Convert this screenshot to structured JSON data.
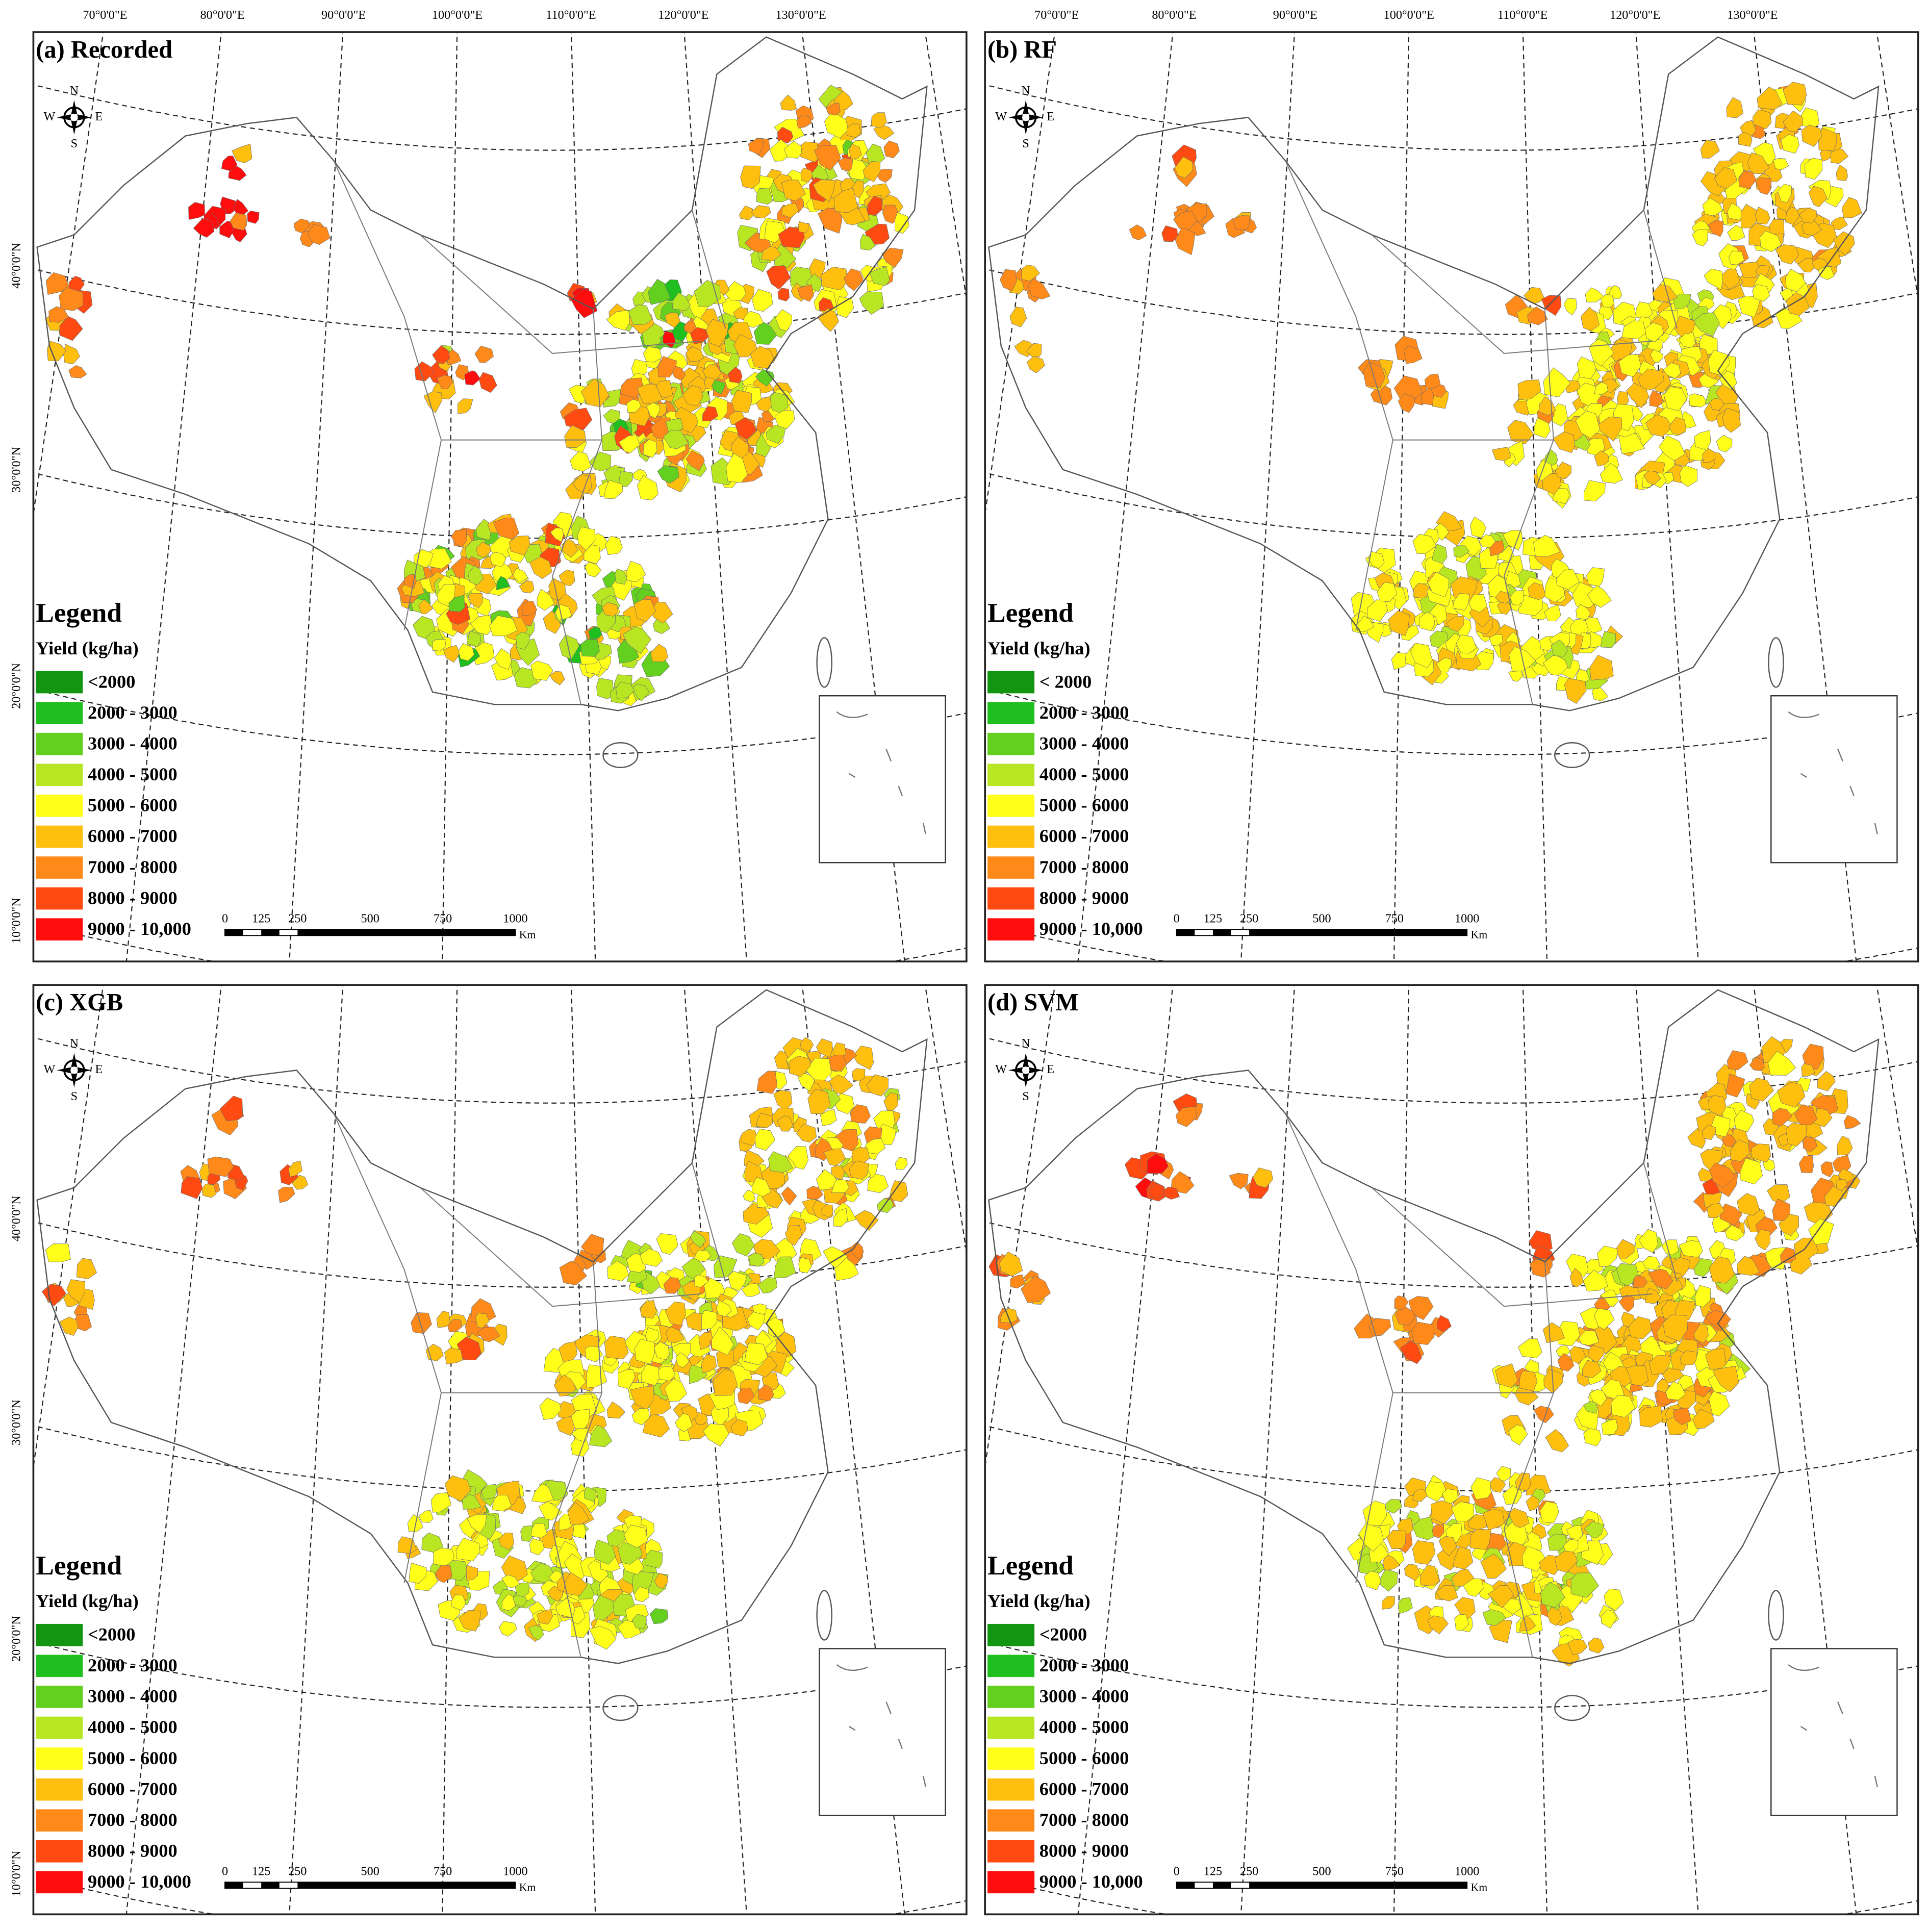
{
  "lon_labels": [
    "70°0'0\"E",
    "80°0'0\"E",
    "90°0'0\"E",
    "100°0'0\"E",
    "110°0'0\"E",
    "120°0'0\"E",
    "130°0'0\"E"
  ],
  "lat_labels": [
    "40°0'0\"N",
    "30°0'0\"N",
    "20°0'0\"N",
    "10°0'0\"N"
  ],
  "compass": {
    "n": "N",
    "s": "S",
    "e": "E",
    "w": "W"
  },
  "panels": [
    {
      "title": "(a) Recorded",
      "legend_title": "Legend",
      "legend_subtitle": "Yield (kg/ha)",
      "legend": [
        {
          "label": "<2000",
          "color": "#129612"
        },
        {
          "label": "2000 - 3000",
          "color": "#1ebf1e"
        },
        {
          "label": "3000 - 4000",
          "color": "#63cf1e"
        },
        {
          "label": "4000 - 5000",
          "color": "#b8e622"
        },
        {
          "label": "5000 - 6000",
          "color": "#ffff1a"
        },
        {
          "label": "6000 - 7000",
          "color": "#ffbf0f"
        },
        {
          "label": "7000 - 8000",
          "color": "#ff8a1a"
        },
        {
          "label": "8000 - 9000",
          "color": "#ff4a12"
        },
        {
          "label": "9000 - 10,000",
          "color": "#ff0d0d"
        }
      ],
      "scale_labels": [
        "0",
        "125",
        "250",
        "500",
        "750",
        "1000"
      ],
      "scale_unit": "Km"
    },
    {
      "title": "(b) RF",
      "legend_title": "Legend",
      "legend_subtitle": "Yield (kg/ha)",
      "legend": [
        {
          "label": "< 2000",
          "color": "#129612"
        },
        {
          "label": "2000 - 3000",
          "color": "#1ebf1e"
        },
        {
          "label": "3000 - 4000",
          "color": "#63cf1e"
        },
        {
          "label": "4000 - 5000",
          "color": "#b8e622"
        },
        {
          "label": "5000 - 6000",
          "color": "#ffff1a"
        },
        {
          "label": "6000 - 7000",
          "color": "#ffbf0f"
        },
        {
          "label": "7000 - 8000",
          "color": "#ff8a1a"
        },
        {
          "label": "8000 - 9000",
          "color": "#ff4a12"
        },
        {
          "label": "9000 - 10,000",
          "color": "#ff0d0d"
        }
      ],
      "scale_labels": [
        "0",
        "125",
        "250",
        "500",
        "750",
        "1000"
      ],
      "scale_unit": "Km"
    },
    {
      "title": "(c) XGB",
      "legend_title": "Legend",
      "legend_subtitle": "Yield (kg/ha)",
      "legend": [
        {
          "label": "<2000",
          "color": "#129612"
        },
        {
          "label": "2000 - 3000",
          "color": "#1ebf1e"
        },
        {
          "label": "3000 - 4000",
          "color": "#63cf1e"
        },
        {
          "label": "4000 - 5000",
          "color": "#b8e622"
        },
        {
          "label": "5000 - 6000",
          "color": "#ffff1a"
        },
        {
          "label": "6000 - 7000",
          "color": "#ffbf0f"
        },
        {
          "label": "7000 - 8000",
          "color": "#ff8a1a"
        },
        {
          "label": "8000 - 9000",
          "color": "#ff4a12"
        },
        {
          "label": "9000 - 10,000",
          "color": "#ff0d0d"
        }
      ],
      "scale_labels": [
        "0",
        "125",
        "250",
        "500",
        "750",
        "1000"
      ],
      "scale_unit": "Km"
    },
    {
      "title": "(d) SVM",
      "legend_title": "Legend",
      "legend_subtitle": "Yield (kg/ha)",
      "legend": [
        {
          "label": "<2000",
          "color": "#129612"
        },
        {
          "label": "2000 - 3000",
          "color": "#1ebf1e"
        },
        {
          "label": "3000 - 4000",
          "color": "#63cf1e"
        },
        {
          "label": "4000 - 5000",
          "color": "#b8e622"
        },
        {
          "label": "5000 - 6000",
          "color": "#ffff1a"
        },
        {
          "label": "6000 - 7000",
          "color": "#ffbf0f"
        },
        {
          "label": "7000 - 8000",
          "color": "#ff8a1a"
        },
        {
          "label": "8000 - 9000",
          "color": "#ff4a12"
        },
        {
          "label": "9000 - 10,000",
          "color": "#ff0d0d"
        }
      ],
      "scale_labels": [
        "0",
        "125",
        "250",
        "500",
        "750",
        "1000"
      ],
      "scale_unit": "Km"
    }
  ]
}
